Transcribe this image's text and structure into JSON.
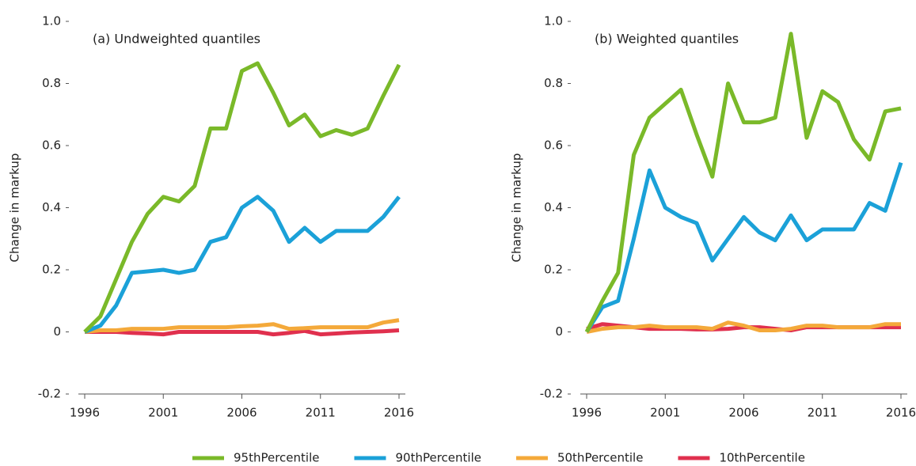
{
  "chart_data": [
    {
      "type": "line",
      "annotation": "(a) Undweighted quantiles",
      "ylabel": "Change in markup",
      "x": [
        1996,
        1997,
        1998,
        1999,
        2000,
        2001,
        2002,
        2003,
        2004,
        2005,
        2006,
        2007,
        2008,
        2009,
        2010,
        2011,
        2012,
        2013,
        2014,
        2015,
        2016
      ],
      "xlim": [
        1996,
        2016
      ],
      "xticks": [
        1996,
        2001,
        2006,
        2011,
        2016
      ],
      "ylim": [
        -0.2,
        1
      ],
      "yticks": [
        -0.2,
        0,
        0.2,
        0.4,
        0.6,
        0.8,
        {
          "value": 1,
          "label": "1.0"
        }
      ],
      "legend": "bottom",
      "series": [
        {
          "name": "95thPercentile",
          "color": "#7ab929",
          "values": [
            0,
            0.05,
            0.17,
            0.29,
            0.38,
            0.435,
            0.42,
            0.47,
            0.655,
            0.655,
            0.84,
            0.865,
            0.77,
            0.665,
            0.7,
            0.63,
            0.65,
            0.635,
            0.655,
            0.76,
            0.86
          ]
        },
        {
          "name": "90thPercentile",
          "color": "#1ba1d8",
          "values": [
            0,
            0.02,
            0.085,
            0.19,
            0.195,
            0.2,
            0.19,
            0.2,
            0.29,
            0.305,
            0.4,
            0.435,
            0.39,
            0.29,
            0.335,
            0.29,
            0.325,
            0.325,
            0.325,
            0.37,
            0.435
          ]
        },
        {
          "name": "50thPercentile",
          "color": "#f4a93a",
          "values": [
            0,
            0.005,
            0.005,
            0.01,
            0.01,
            0.01,
            0.015,
            0.015,
            0.015,
            0.015,
            0.018,
            0.02,
            0.025,
            0.01,
            0.012,
            0.015,
            0.015,
            0.015,
            0.015,
            0.03,
            0.038
          ]
        },
        {
          "name": "10thPercentile",
          "color": "#e0304e",
          "values": [
            0,
            0,
            0,
            -0.003,
            -0.005,
            -0.008,
            0,
            0,
            0,
            0,
            0,
            0,
            -0.008,
            -0.003,
            0.003,
            -0.008,
            -0.005,
            -0.002,
            0,
            0.002,
            0.005
          ]
        }
      ]
    },
    {
      "type": "line",
      "annotation": "(b) Weighted quantiles",
      "ylabel": "Change in markup",
      "x": [
        1996,
        1997,
        1998,
        1999,
        2000,
        2001,
        2002,
        2003,
        2004,
        2005,
        2006,
        2007,
        2008,
        2009,
        2010,
        2011,
        2012,
        2013,
        2014,
        2015,
        2016
      ],
      "xlim": [
        1996,
        2016
      ],
      "xticks": [
        1996,
        2001,
        2006,
        2011,
        2016
      ],
      "ylim": [
        -0.2,
        1
      ],
      "yticks": [
        -0.2,
        0,
        0.2,
        0.4,
        0.6,
        0.8,
        {
          "value": 1,
          "label": "1.0"
        }
      ],
      "series": [
        {
          "color": "#7ab929",
          "values": [
            0,
            0.1,
            0.19,
            0.57,
            0.69,
            0.735,
            0.78,
            0.635,
            0.5,
            0.8,
            0.675,
            0.675,
            0.69,
            0.96,
            0.625,
            0.775,
            0.74,
            0.62,
            0.555,
            0.71,
            0.72
          ]
        },
        {
          "color": "#1ba1d8",
          "values": [
            0,
            0.08,
            0.1,
            0.3,
            0.52,
            0.4,
            0.37,
            0.35,
            0.23,
            0.3,
            0.37,
            0.32,
            0.295,
            0.375,
            0.295,
            0.33,
            0.33,
            0.33,
            0.415,
            0.39,
            0.545
          ]
        },
        {
          "color": "#f4a93a",
          "values": [
            0,
            0.01,
            0.015,
            0.015,
            0.02,
            0.015,
            0.015,
            0.015,
            0.01,
            0.03,
            0.02,
            0.005,
            0.005,
            0.01,
            0.02,
            0.02,
            0.015,
            0.015,
            0.015,
            0.025,
            0.025
          ]
        },
        {
          "color": "#e0304e",
          "values": [
            0.01,
            0.025,
            0.02,
            0.015,
            0.01,
            0.01,
            0.01,
            0.008,
            0.008,
            0.01,
            0.015,
            0.015,
            0.01,
            0.005,
            0.015,
            0.015,
            0.015,
            0.015,
            0.015,
            0.015,
            0.015
          ]
        }
      ]
    }
  ]
}
